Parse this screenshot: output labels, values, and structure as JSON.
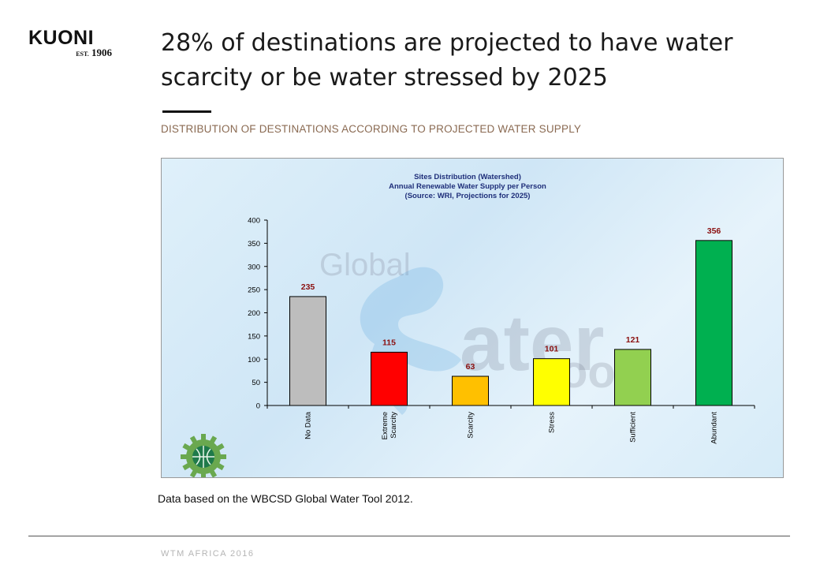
{
  "logo": {
    "word": "KUONI",
    "est_prefix": "EST.",
    "est_year": "1906"
  },
  "headline": "28% of destinations are projected to have water scarcity or be water stressed by 2025",
  "subtitle": "DISTRIBUTION OF DESTINATIONS ACCORDING TO PROJECTED WATER SUPPLY",
  "caption": "Data based on the WBCSD Global Water Tool 2012.",
  "footer": "WTM AFRICA 2016",
  "watermark": {
    "line1": "Global",
    "line2": "ater",
    "line3": "oo"
  },
  "colors": {
    "value_label": "#8b1010",
    "chart_title": "#1f2f7a",
    "subtitle": "#8a6a52"
  },
  "chart_data": {
    "type": "bar",
    "title_lines": [
      "Sites Distribution (Watershed)",
      "Annual Renewable Water Supply per Person",
      "(Source: WRI, Projections for  2025)"
    ],
    "categories": [
      "No Data",
      "Extreme Scarcity",
      "Scarcity",
      "Stress",
      "Sufficient",
      "Abundant"
    ],
    "category_label_lines": [
      [
        "No Data"
      ],
      [
        "Extreme",
        "Scarcity"
      ],
      [
        "Scarcity"
      ],
      [
        "Stress"
      ],
      [
        "Sufficient"
      ],
      [
        "Abundant"
      ]
    ],
    "values": [
      235,
      115,
      63,
      101,
      121,
      356
    ],
    "bar_colors": [
      "#bdbdbd",
      "#ff0000",
      "#ffc000",
      "#ffff00",
      "#92d050",
      "#00b050"
    ],
    "ylim": [
      0,
      400
    ],
    "yticks": [
      0,
      50,
      100,
      150,
      200,
      250,
      300,
      350,
      400
    ],
    "grid": false,
    "xlabel": "",
    "ylabel": ""
  }
}
